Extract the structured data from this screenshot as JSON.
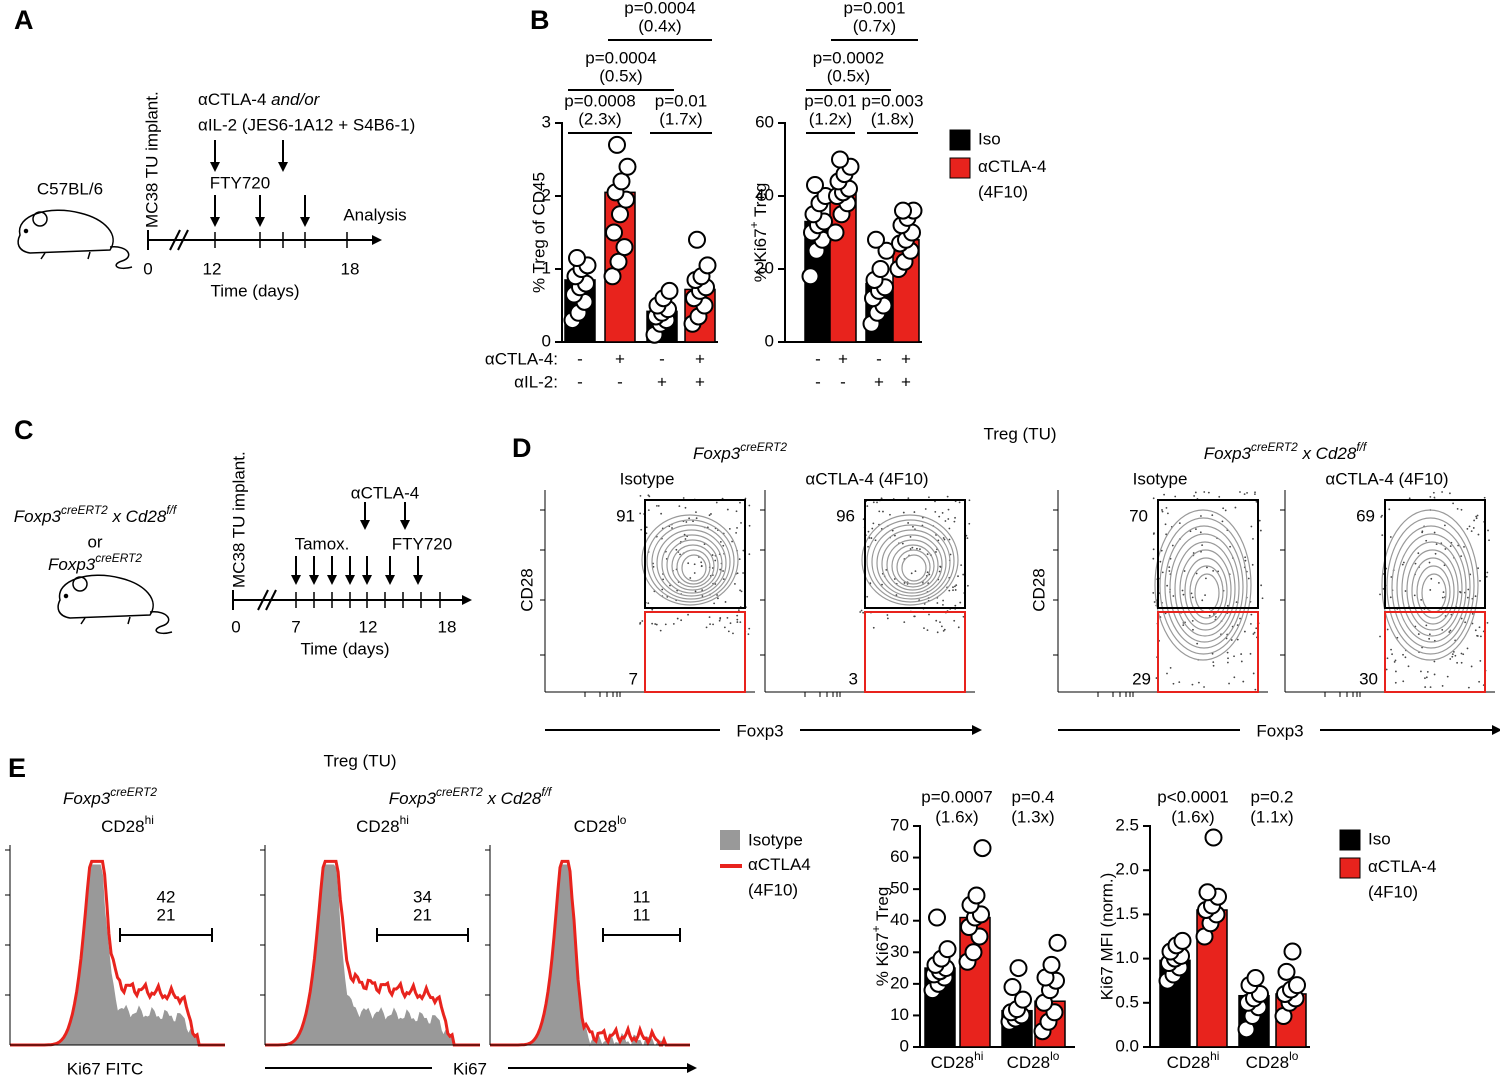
{
  "figure": {
    "panel_a": {
      "letter": "A",
      "strain": "C57BL/6",
      "implant": "MC38 TU implant.",
      "treatment_line1": [
        {
          "text": "αCTLA-4 "
        },
        {
          "text": "and/or",
          "style": "italic"
        }
      ],
      "treatment_line2": "αIL-2 (JES6-1A12 + S4B6-1)",
      "fty": "FTY720",
      "analysis": "Analysis",
      "ticks": [
        0,
        12,
        18
      ],
      "xlabel": "Time (days)"
    },
    "panel_b": {
      "letter": "B"
    },
    "panel_c": {
      "letter": "C",
      "genotype1": [
        {
          "text": "Foxp3",
          "style": "italic"
        },
        {
          "text": "creERT2",
          "style": "italic-sup"
        },
        {
          "text": " x ",
          "style": "italic"
        },
        {
          "text": "Cd28",
          "style": "italic"
        },
        {
          "text": "f/f",
          "style": "italic-sup"
        }
      ],
      "or": "or",
      "genotype2": [
        {
          "text": "Foxp3",
          "style": "italic"
        },
        {
          "text": "creERT2",
          "style": "italic-sup"
        }
      ],
      "implant": "MC38 TU implant.",
      "actla4": "αCTLA-4",
      "tamox": "Tamox.",
      "fty": "FTY720",
      "ticks": [
        0,
        7,
        12,
        18
      ],
      "xlabel": "Time (days)"
    },
    "panel_d": {
      "letter": "D",
      "title": "Treg (TU)",
      "groups": [
        {
          "title": [
            {
              "text": "Foxp3",
              "style": "italic"
            },
            {
              "text": "creERT2",
              "style": "italic-sup"
            }
          ],
          "ylabel": "CD28",
          "xlabel": "Foxp3",
          "plots": [
            {
              "title": "Isotype",
              "gate_high": 91,
              "gate_low": 7
            },
            {
              "title": "αCTLA-4 (4F10)",
              "gate_high": 96,
              "gate_low": 3
            }
          ]
        },
        {
          "title": [
            {
              "text": "Foxp3",
              "style": "italic"
            },
            {
              "text": "creERT2",
              "style": "italic-sup"
            },
            {
              "text": " x ",
              "style": "italic"
            },
            {
              "text": "Cd28",
              "style": "italic"
            },
            {
              "text": "f/f",
              "style": "italic-sup"
            }
          ],
          "ylabel": "CD28",
          "xlabel": "Foxp3",
          "plots": [
            {
              "title": "Isotype",
              "gate_high": 70,
              "gate_low": 29
            },
            {
              "title": "αCTLA-4 (4F10)",
              "gate_high": 69,
              "gate_low": 30
            }
          ]
        }
      ]
    },
    "panel_e": {
      "letter": "E",
      "title": "Treg (TU)",
      "groups": [
        {
          "genotype": [
            {
              "text": "Foxp3",
              "style": "italic"
            },
            {
              "text": "creERT2",
              "style": "italic-sup"
            }
          ],
          "xlabel": "Ki67 FITC",
          "plots": [
            {
              "subset": [
                {
                  "text": "CD28"
                },
                {
                  "text": "hi",
                  "style": "sup"
                }
              ],
              "pct_actla4": 42,
              "pct_isotype": 21
            }
          ]
        },
        {
          "genotype": [
            {
              "text": "Foxp3",
              "style": "italic"
            },
            {
              "text": "creERT2",
              "style": "italic-sup"
            },
            {
              "text": " x ",
              "style": "italic"
            },
            {
              "text": "Cd28",
              "style": "italic"
            },
            {
              "text": "f/f",
              "style": "italic-sup"
            }
          ],
          "xlabel": "Ki67",
          "plots": [
            {
              "subset": [
                {
                  "text": "CD28"
                },
                {
                  "text": "hi",
                  "style": "sup"
                }
              ],
              "pct_actla4": 34,
              "pct_isotype": 21
            },
            {
              "subset": [
                {
                  "text": "CD28"
                },
                {
                  "text": "lo",
                  "style": "sup"
                }
              ],
              "pct_actla4": 11,
              "pct_isotype": 11
            }
          ]
        }
      ],
      "legend": [
        "Isotype",
        "αCTLA4 (4F10)"
      ]
    }
  },
  "chart_data": [
    {
      "type": "bar",
      "ylabel": "% Treg of CD45",
      "ylim": [
        0,
        3
      ],
      "yticks": [
        0,
        1,
        2,
        3
      ],
      "categories": [
        null,
        null
      ],
      "series": [
        {
          "color": "#000000",
          "values": [
            0.85,
            0.42
          ],
          "points": [
            [
              0.3,
              0.4,
              0.55,
              0.65,
              0.75,
              0.8,
              0.9,
              1.0,
              1.05,
              1.15
            ],
            [
              0.1,
              0.25,
              0.3,
              0.35,
              0.4,
              0.45,
              0.5,
              0.6,
              0.7
            ]
          ]
        },
        {
          "color": "#e8231d",
          "values": [
            2.05,
            0.72
          ],
          "points": [
            [
              0.9,
              1.1,
              1.3,
              1.5,
              1.75,
              1.95,
              2.05,
              2.2,
              2.4,
              2.7
            ],
            [
              0.25,
              0.35,
              0.5,
              0.6,
              0.7,
              0.75,
              0.85,
              0.9,
              1.05,
              1.4
            ]
          ]
        }
      ],
      "conditions": [
        {
          "label": "αCTLA-4:",
          "values": [
            "-",
            "+",
            "-",
            "+"
          ]
        },
        {
          "label": "αIL-2:",
          "values": [
            "-",
            "-",
            "+",
            "+"
          ]
        }
      ],
      "comparisons": [
        {
          "p": "p=0.0008",
          "fold": "(2.3x)"
        },
        {
          "p": "p=0.01",
          "fold": "(1.7x)"
        },
        {
          "p": "p=0.0004",
          "fold": "(0.5x)"
        },
        {
          "p": "p=0.0004",
          "fold": "(0.4x)"
        }
      ]
    },
    {
      "type": "bar",
      "ylabel": [
        {
          "text": "% Ki67"
        },
        {
          "text": "+",
          "style": "sup"
        },
        {
          "text": " Treg"
        }
      ],
      "ylim": [
        0,
        60
      ],
      "yticks": [
        0,
        20,
        40,
        60
      ],
      "categories": [
        null,
        null
      ],
      "series": [
        {
          "name": "Iso",
          "color": "#000000",
          "values": [
            33,
            16
          ],
          "points": [
            [
              18,
              25,
              28,
              30,
              32,
              33,
              35,
              38,
              40,
              43
            ],
            [
              5,
              8,
              10,
              12,
              14,
              15,
              17,
              20,
              25,
              28
            ]
          ]
        },
        {
          "name": "αCTLA-4 (4F10)",
          "color": "#e8231d",
          "values": [
            41,
            28
          ],
          "points": [
            [
              30,
              35,
              38,
              40,
              41,
              42,
              44,
              46,
              48,
              50
            ],
            [
              20,
              22,
              25,
              27,
              28,
              30,
              32,
              34,
              36,
              36
            ]
          ]
        }
      ],
      "conditions": [
        {
          "values": [
            "-",
            "+",
            "-",
            "+"
          ]
        },
        {
          "values": [
            "-",
            "-",
            "+",
            "+"
          ]
        }
      ],
      "comparisons": [
        {
          "p": "p=0.01",
          "fold": "(1.2x)"
        },
        {
          "p": "p=0.003",
          "fold": "(1.8x)"
        },
        {
          "p": "p=0.0002",
          "fold": "(0.5x)"
        },
        {
          "p": "p=0.001",
          "fold": "(0.7x)"
        }
      ]
    },
    {
      "type": "bar",
      "ylabel": [
        {
          "text": "% Ki67"
        },
        {
          "text": "+",
          "style": "sup"
        },
        {
          "text": " Treg"
        }
      ],
      "ylim": [
        0,
        70
      ],
      "yticks": [
        0,
        10,
        20,
        30,
        40,
        50,
        60,
        70
      ],
      "categories": [
        "CD28",
        "CD28"
      ],
      "category_superscripts": [
        "hi",
        "lo"
      ],
      "series": [
        {
          "color": "#000000",
          "values": [
            25,
            11.5
          ],
          "points": [
            [
              18,
              20,
              22,
              23,
              24,
              25,
              26,
              28,
              31,
              41
            ],
            [
              8,
              9,
              10,
              11,
              12,
              15,
              19,
              25
            ]
          ]
        },
        {
          "color": "#e8231d",
          "values": [
            41,
            14.5
          ],
          "points": [
            [
              27,
              30,
              35,
              38,
              41,
              42,
              45,
              48,
              63
            ],
            [
              5,
              8,
              11,
              14,
              18,
              21,
              22,
              26,
              33
            ]
          ]
        }
      ],
      "comparisons": [
        {
          "p": "p=0.0007",
          "fold": "(1.6x)"
        },
        {
          "p": "p=0.4",
          "fold": "(1.3x)"
        }
      ]
    },
    {
      "type": "bar",
      "ylabel": "Ki67 MFI (norm.)",
      "ylim": [
        0,
        2.5
      ],
      "yticks": [
        {
          "value": 0,
          "label": "0.0"
        },
        0.5,
        {
          "value": 1,
          "label": "1.0"
        },
        1.5,
        {
          "value": 2,
          "label": "2.0"
        },
        2.5
      ],
      "categories": [
        "CD28",
        "CD28"
      ],
      "category_superscripts": [
        "hi",
        "lo"
      ],
      "series": [
        {
          "name": "Iso",
          "color": "#000000",
          "values": [
            0.98,
            0.58
          ],
          "points": [
            [
              0.75,
              0.82,
              0.9,
              0.95,
              1.0,
              1.03,
              1.08,
              1.15,
              1.2
            ],
            [
              0.2,
              0.35,
              0.45,
              0.5,
              0.55,
              0.6,
              0.7,
              0.78
            ]
          ]
        },
        {
          "name": "αCTLA-4 (4F10)",
          "color": "#e8231d",
          "values": [
            1.55,
            0.6
          ],
          "points": [
            [
              1.25,
              1.4,
              1.5,
              1.55,
              1.6,
              1.7,
              1.75,
              2.37
            ],
            [
              0.35,
              0.5,
              0.55,
              0.6,
              0.65,
              0.7,
              0.85,
              1.08
            ]
          ]
        }
      ],
      "comparisons": [
        {
          "p": "p<0.0001",
          "fold": "(1.6x)"
        },
        {
          "p": "p=0.2",
          "fold": "(1.1x)"
        }
      ]
    }
  ]
}
